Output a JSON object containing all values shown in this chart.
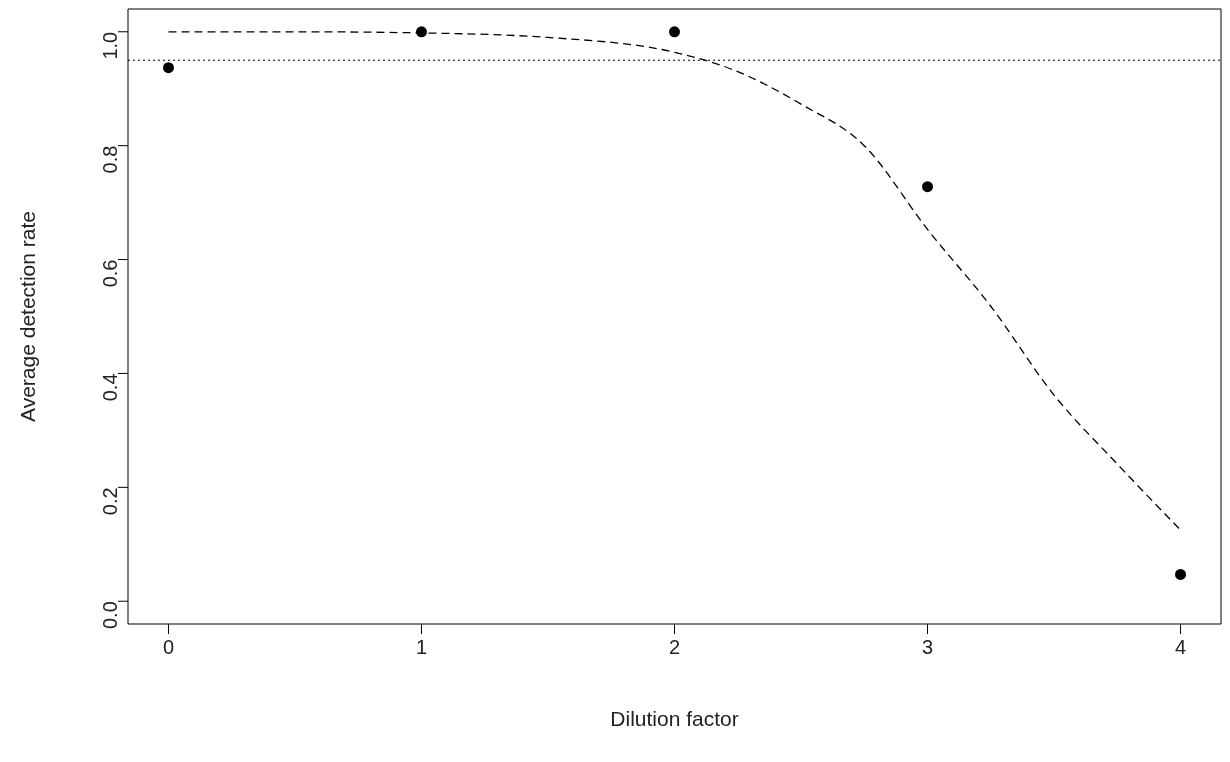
{
  "chart_data": {
    "type": "scatter",
    "xlabel": "Dilution factor",
    "ylabel": "Average detection rate",
    "xlim": [
      -0.16,
      4.16
    ],
    "ylim": [
      -0.04,
      1.04
    ],
    "xticks": [
      0,
      1,
      2,
      3,
      4
    ],
    "yticks": [
      {
        "value": 0,
        "label": "0.0"
      },
      0.2,
      0.4,
      0.6,
      0.8,
      {
        "value": 1,
        "label": "1.0"
      }
    ],
    "grid": false,
    "series": [
      {
        "type": "scatter",
        "color": "#000000",
        "marker": "circle",
        "x": [
          0,
          1,
          2,
          3,
          4
        ],
        "values": [
          0.937,
          1.0,
          1.0,
          0.728,
          0.047
        ]
      },
      {
        "type": "line",
        "color": "#000000",
        "marker": "none",
        "line_style": "dashed",
        "x": [
          0,
          0.5,
          1,
          1.5,
          2,
          2.25,
          2.5,
          2.75,
          3,
          3.25,
          3.5,
          3.75,
          4
        ],
        "values": [
          1.0,
          1.0,
          0.998,
          0.99,
          0.964,
          0.93,
          0.873,
          0.8,
          0.653,
          0.518,
          0.362,
          0.241,
          0.125
        ]
      }
    ],
    "ref_lines": [
      {
        "axis": "y",
        "value": 0.95,
        "color": "#000000",
        "line_style": "dotted"
      }
    ]
  }
}
